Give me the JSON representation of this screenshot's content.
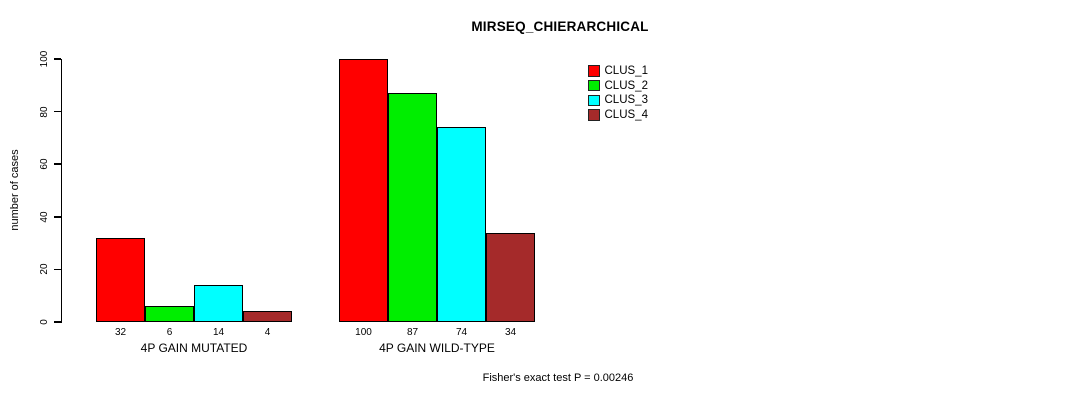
{
  "chart_data": {
    "type": "bar",
    "title": "MIRSEQ_CHIERARCHICAL",
    "ylabel": "number of cases",
    "xlabel": "",
    "ylim": [
      0,
      100
    ],
    "yticks": [
      0,
      20,
      40,
      60,
      80,
      100
    ],
    "grid": false,
    "legend_position": "top-right",
    "groups": [
      "4P GAIN MUTATED",
      "4P GAIN WILD-TYPE"
    ],
    "series": [
      {
        "name": "CLUS_1",
        "color": "#ff0000",
        "values": [
          32,
          100
        ]
      },
      {
        "name": "CLUS_2",
        "color": "#00ee00",
        "values": [
          6,
          87
        ]
      },
      {
        "name": "CLUS_3",
        "color": "#00ffff",
        "values": [
          14,
          74
        ]
      },
      {
        "name": "CLUS_4",
        "color": "#a52a2a",
        "values": [
          4,
          34
        ]
      }
    ],
    "annotation": "Fisher's exact test P = 0.00246",
    "axis_color": "#000000",
    "background_color": "#ffffff"
  }
}
